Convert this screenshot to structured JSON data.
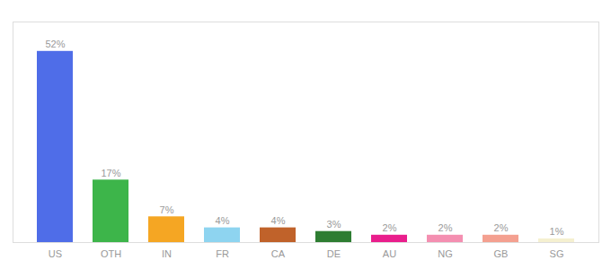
{
  "chart_data": {
    "type": "bar",
    "categories": [
      "US",
      "OTH",
      "IN",
      "FR",
      "CA",
      "DE",
      "AU",
      "NG",
      "GB",
      "SG"
    ],
    "values": [
      52,
      17,
      7,
      4,
      4,
      3,
      2,
      2,
      2,
      1
    ],
    "value_labels": [
      "52%",
      "17%",
      "7%",
      "4%",
      "4%",
      "3%",
      "2%",
      "2%",
      "2%",
      "1%"
    ],
    "colors": [
      "#4f6de8",
      "#3db54a",
      "#f5a623",
      "#8ed4f0",
      "#c0622a",
      "#2e7d32",
      "#e91e8c",
      "#f48fb1",
      "#f4a090",
      "#f5f0d0"
    ],
    "ylim": [
      0,
      60
    ],
    "data_labels": true,
    "tick_labels": "x",
    "grid": false
  }
}
